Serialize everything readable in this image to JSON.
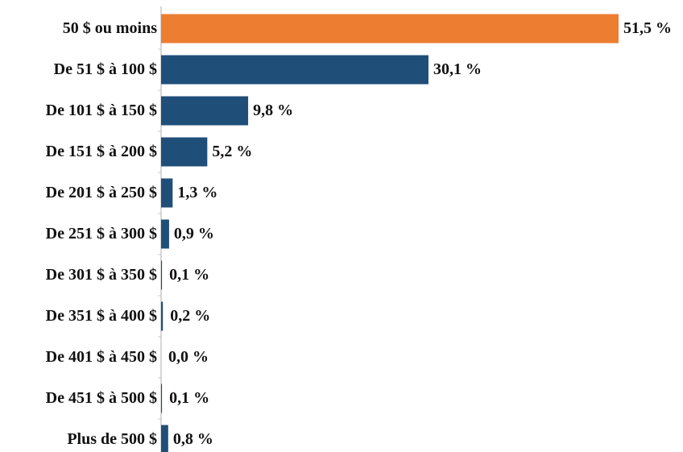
{
  "chart_data": {
    "type": "bar",
    "orientation": "horizontal",
    "categories": [
      "50 $ ou moins",
      "De 51 $ à 100 $",
      "De 101 $ à 150 $",
      "De 151 $ à 200 $",
      "De 201 $ à 250 $",
      "De 251 $ à 300 $",
      "De 301 $ à 350 $",
      "De 351 $ à 400 $",
      "De 401 $ à 450 $",
      "De 451 $ à 500 $",
      "Plus de 500 $"
    ],
    "values": [
      51.5,
      30.1,
      9.8,
      5.2,
      1.3,
      0.9,
      0.1,
      0.2,
      0.0,
      0.1,
      0.8
    ],
    "value_labels": [
      "51,5 %",
      "30,1 %",
      "9,8 %",
      "5,2 %",
      "1,3 %",
      "0,9 %",
      "0,1 %",
      "0,2 %",
      "0,0 %",
      "0,1 %",
      "0,8 %"
    ],
    "colors": [
      "#ed7d31",
      "#1f4e79",
      "#1f4e79",
      "#1f4e79",
      "#1f4e79",
      "#1f4e79",
      "#1f4e79",
      "#1f4e79",
      "#1f4e79",
      "#1f4e79",
      "#1f4e79"
    ]
  }
}
